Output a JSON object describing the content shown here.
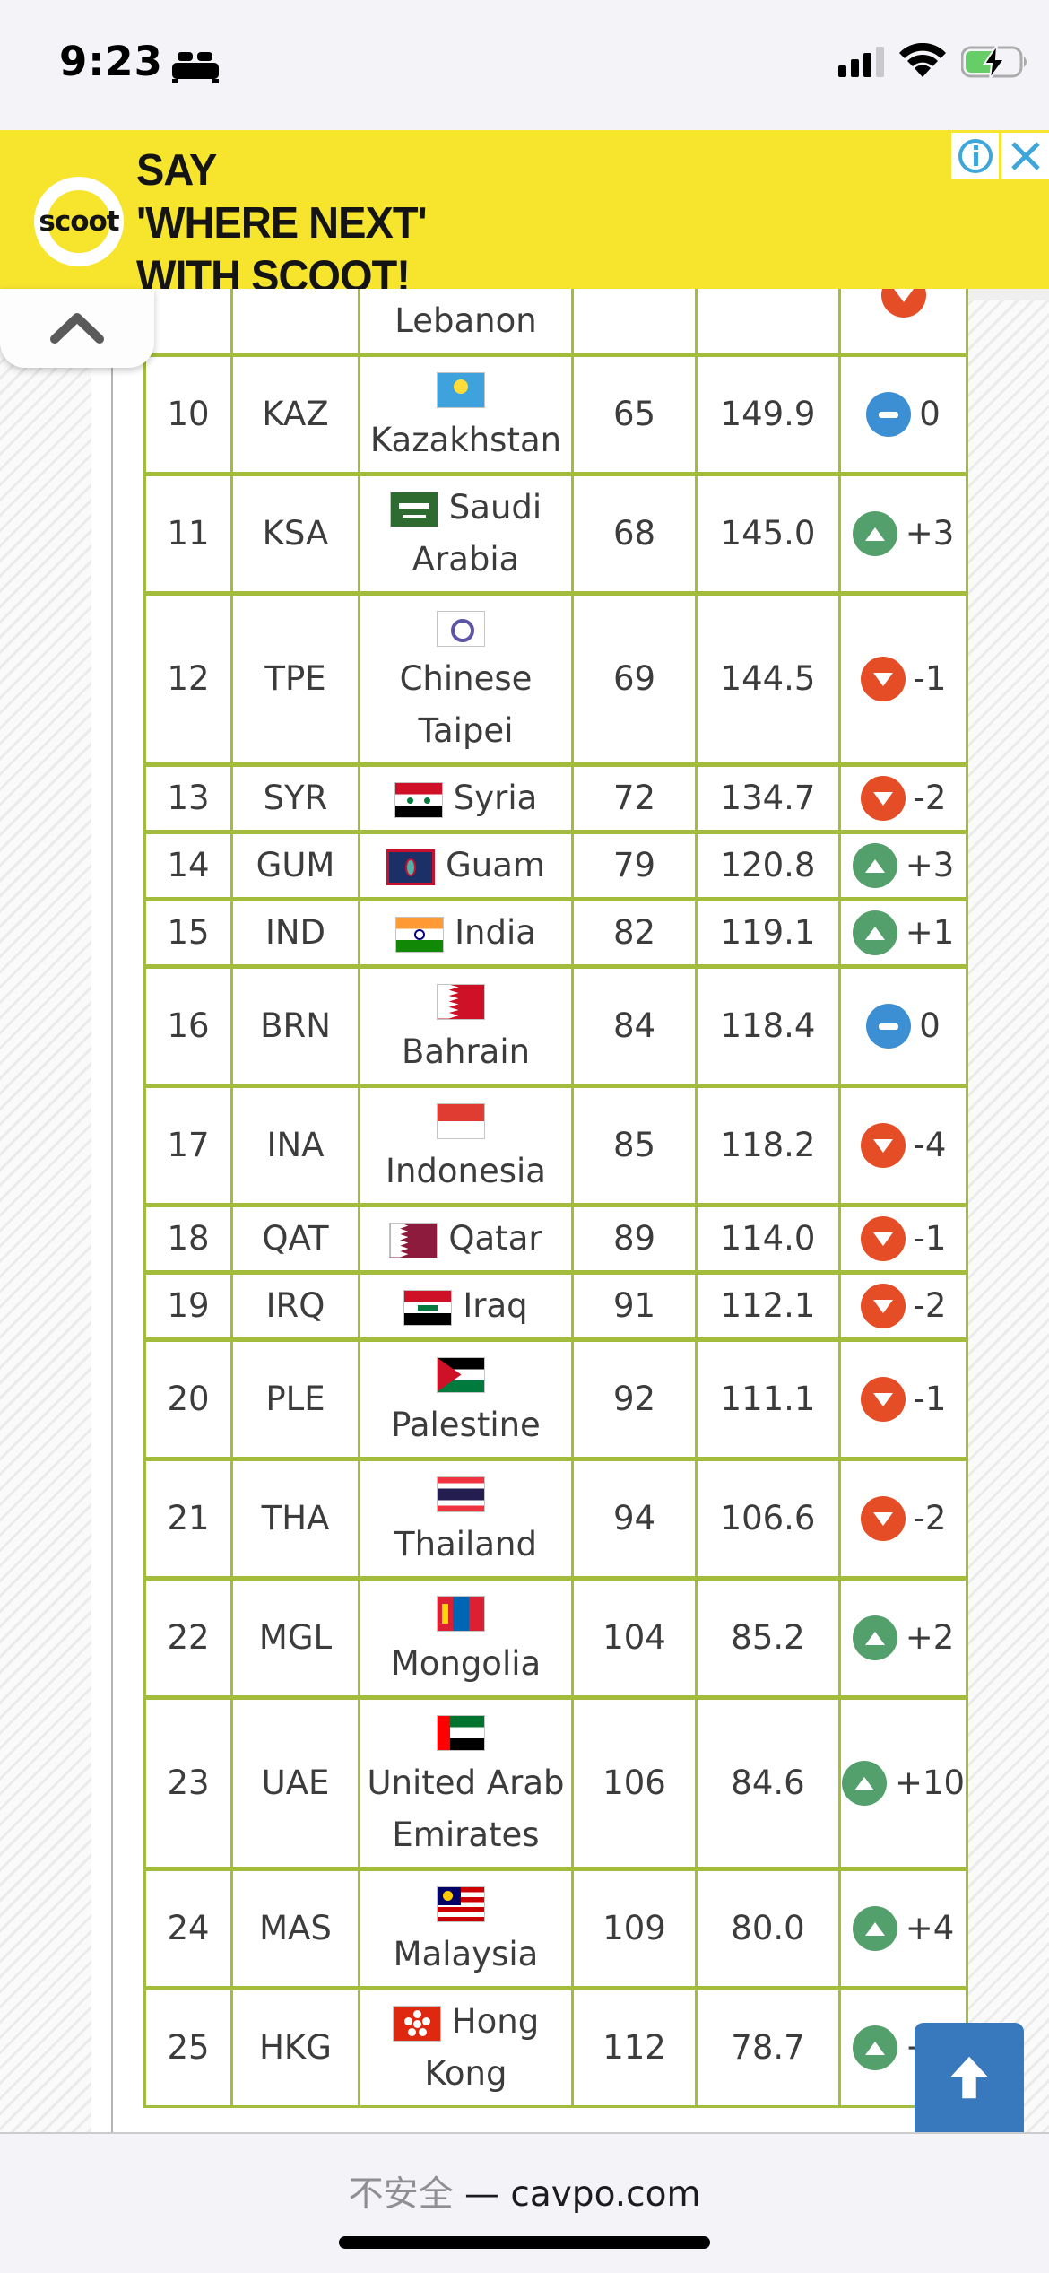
{
  "status_bar": {
    "time": "9:23"
  },
  "ad": {
    "logo_text": "scoot",
    "line1": "SAY",
    "line2": "'WHERE NEXT'",
    "line3": "WITH SCOOT!",
    "bg_color": "#F6E42D"
  },
  "browser": {
    "security_label": "不安全",
    "separator": "—",
    "domain": "cavpo.com"
  },
  "colors": {
    "table_border": "#A3BC3B",
    "change_up": "#53A06C",
    "change_down": "#E44D26",
    "change_same": "#3D8FD4",
    "scroll_button": "#3878BC"
  },
  "table": {
    "partial_top_row": {
      "country": "Lebanon",
      "flag": "lbn",
      "dir": "down"
    },
    "rows": [
      {
        "rank": "10",
        "code": "KAZ",
        "country": "Kazakhstan",
        "flag": "kaz",
        "flag_block": true,
        "world_rank": "65",
        "points": "149.9",
        "change": "0",
        "dir": "same"
      },
      {
        "rank": "11",
        "code": "KSA",
        "country": "Saudi Arabia",
        "flag": "ksa",
        "flag_block": false,
        "world_rank": "68",
        "points": "145.0",
        "change": "+3",
        "dir": "up"
      },
      {
        "rank": "12",
        "code": "TPE",
        "country": "Chinese Taipei",
        "flag": "tpe",
        "flag_block": true,
        "world_rank": "69",
        "points": "144.5",
        "change": "-1",
        "dir": "down"
      },
      {
        "rank": "13",
        "code": "SYR",
        "country": "Syria",
        "flag": "syr",
        "flag_block": false,
        "world_rank": "72",
        "points": "134.7",
        "change": "-2",
        "dir": "down"
      },
      {
        "rank": "14",
        "code": "GUM",
        "country": "Guam",
        "flag": "gum",
        "flag_block": false,
        "world_rank": "79",
        "points": "120.8",
        "change": "+3",
        "dir": "up"
      },
      {
        "rank": "15",
        "code": "IND",
        "country": "India",
        "flag": "ind",
        "flag_block": false,
        "world_rank": "82",
        "points": "119.1",
        "change": "+1",
        "dir": "up"
      },
      {
        "rank": "16",
        "code": "BRN",
        "country": "Bahrain",
        "flag": "brn",
        "flag_block": true,
        "world_rank": "84",
        "points": "118.4",
        "change": "0",
        "dir": "same"
      },
      {
        "rank": "17",
        "code": "INA",
        "country": "Indonesia",
        "flag": "ina",
        "flag_block": true,
        "world_rank": "85",
        "points": "118.2",
        "change": "-4",
        "dir": "down"
      },
      {
        "rank": "18",
        "code": "QAT",
        "country": "Qatar",
        "flag": "qat",
        "flag_block": false,
        "world_rank": "89",
        "points": "114.0",
        "change": "-1",
        "dir": "down"
      },
      {
        "rank": "19",
        "code": "IRQ",
        "country": "Iraq",
        "flag": "irq",
        "flag_block": false,
        "world_rank": "91",
        "points": "112.1",
        "change": "-2",
        "dir": "down"
      },
      {
        "rank": "20",
        "code": "PLE",
        "country": "Palestine",
        "flag": "ple",
        "flag_block": true,
        "world_rank": "92",
        "points": "111.1",
        "change": "-1",
        "dir": "down"
      },
      {
        "rank": "21",
        "code": "THA",
        "country": "Thailand",
        "flag": "tha",
        "flag_block": true,
        "world_rank": "94",
        "points": "106.6",
        "change": "-2",
        "dir": "down"
      },
      {
        "rank": "22",
        "code": "MGL",
        "country": "Mongolia",
        "flag": "mgl",
        "flag_block": true,
        "world_rank": "104",
        "points": "85.2",
        "change": "+2",
        "dir": "up"
      },
      {
        "rank": "23",
        "code": "UAE",
        "country": "United Arab Emirates",
        "flag": "uae",
        "flag_block": true,
        "world_rank": "106",
        "points": "84.6",
        "change": "+10",
        "dir": "up"
      },
      {
        "rank": "24",
        "code": "MAS",
        "country": "Malaysia",
        "flag": "mas",
        "flag_block": true,
        "world_rank": "109",
        "points": "80.0",
        "change": "+4",
        "dir": "up"
      },
      {
        "rank": "25",
        "code": "HKG",
        "country": "Hong Kong",
        "flag": "hkg",
        "flag_block": false,
        "world_rank": "112",
        "points": "78.7",
        "change": "+3",
        "dir": "up"
      }
    ]
  }
}
